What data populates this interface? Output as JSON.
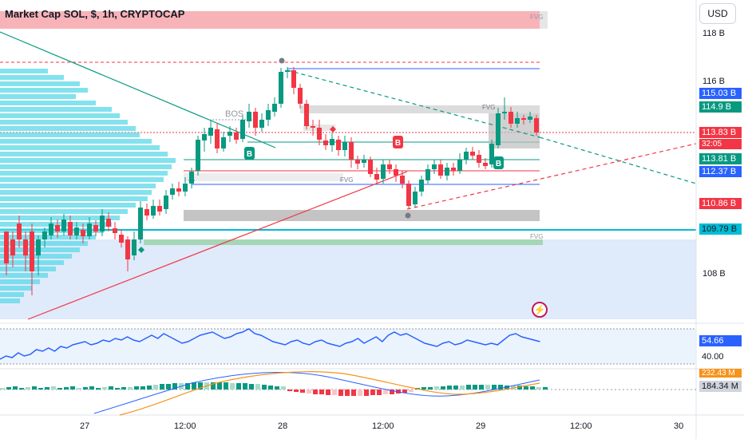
{
  "header": {
    "title": "Market Cap SOL, $, 1h, CRYPTOCAP",
    "currency_button": "USD"
  },
  "colors": {
    "up": "#089981",
    "down": "#f23645",
    "rsi": "#2962ff",
    "volume_profile": "#5ad8e8",
    "fvg_box": "#c7c7c7",
    "supply_zone": "#f7a8ae",
    "demand_zone": "#dbe8fb",
    "signal_orange": "#f7931a"
  },
  "price_axis": {
    "labels": [
      "118 B",
      "116 B",
      "108 B"
    ],
    "badges": [
      {
        "text": "115.03 B",
        "bg": "#2962ff",
        "fg": "#ffffff"
      },
      {
        "text": "114.9 B",
        "bg": "#089981",
        "fg": "#ffffff"
      },
      {
        "text": "113.83 B",
        "bg": "#f23645",
        "fg": "#ffffff"
      },
      {
        "text": "32:05",
        "bg": "#f23645",
        "fg": "#ffffff"
      },
      {
        "text": "113.81 B",
        "bg": "#089981",
        "fg": "#ffffff"
      },
      {
        "text": "112.37 B",
        "bg": "#2962ff",
        "fg": "#ffffff"
      },
      {
        "text": "110.86 B",
        "bg": "#f23645",
        "fg": "#ffffff"
      },
      {
        "text": "109.79 B",
        "bg": "#00bcd4",
        "fg": "#131722"
      }
    ]
  },
  "rsi_axis": {
    "badges": [
      {
        "text": "54.66",
        "bg": "#2962ff",
        "fg": "#ffffff"
      },
      {
        "text": "40.00",
        "bg": "#ffffff",
        "fg": "#131722"
      }
    ]
  },
  "macd_axis": {
    "badges": [
      {
        "text": "232.43 M",
        "bg": "#f7931a",
        "fg": "#ffffff"
      },
      {
        "text": "184.34 M",
        "bg": "#d1d4dc",
        "fg": "#131722"
      }
    ]
  },
  "time_axis": {
    "labels": [
      "27",
      "12:00",
      "28",
      "12:00",
      "29",
      "12:00",
      "30"
    ]
  },
  "annotations": {
    "bos": "BOS",
    "fvg": "FVG",
    "signal_b": "B"
  },
  "icons": {
    "bolt": "⚡"
  }
}
